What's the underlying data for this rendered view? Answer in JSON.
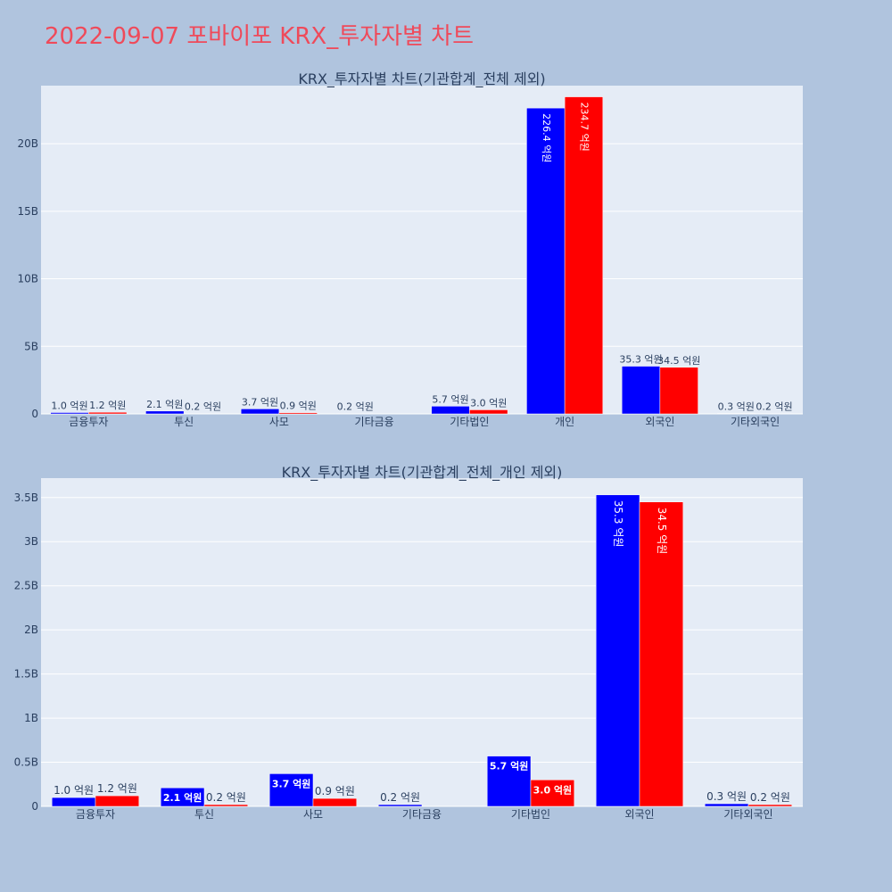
{
  "page_title": "2022-09-07 포바이포 KRX_투자자별 차트",
  "colors": {
    "background": "#b0c4de",
    "plot_bg": "#e5ecf6",
    "grid": "#ffffff",
    "buy": "#0000ff",
    "sell": "#ff0000",
    "title": "#ef4a5a",
    "text": "#2a3f5f"
  },
  "chart_data": [
    {
      "type": "bar",
      "title": "KRX_투자자별 차트(기관합계_전체 제외)",
      "categories": [
        "금융투자",
        "투신",
        "사모",
        "기타금융",
        "기타법인",
        "개인",
        "외국인",
        "기타외국인"
      ],
      "series": [
        {
          "color": "#0000ff",
          "values": [
            0.1,
            0.21,
            0.37,
            0.02,
            0.57,
            22.64,
            3.53,
            0.03
          ],
          "labels": [
            "1.0 억원",
            "2.1 억원",
            "3.7 억원",
            "0.2 억원",
            "5.7 억원",
            "226.4 억원",
            "35.3 억원",
            "0.3 억원"
          ]
        },
        {
          "color": "#ff0000",
          "values": [
            0.12,
            0.02,
            0.09,
            0,
            0.3,
            23.47,
            3.45,
            0.02
          ],
          "labels": [
            "1.2 억원",
            "0.2 억원",
            "0.9 억원",
            "",
            "3.0 억원",
            "234.7 억원",
            "34.5 억원",
            "0.2 억원"
          ]
        }
      ],
      "ylim": [
        0,
        24.3
      ],
      "y_ticks": [
        0,
        5,
        10,
        15,
        20
      ],
      "y_tick_labels": [
        "0",
        "5B",
        "10B",
        "15B",
        "20B"
      ],
      "grid": true
    },
    {
      "type": "bar",
      "title": "KRX_투자자별 차트(기관합계_전체_개인 제외)",
      "categories": [
        "금융투자",
        "투신",
        "사모",
        "기타금융",
        "기타법인",
        "외국인",
        "기타외국인"
      ],
      "series": [
        {
          "color": "#0000ff",
          "values": [
            0.1,
            0.21,
            0.37,
            0.02,
            0.57,
            3.53,
            0.03
          ],
          "labels": [
            "1.0 억원",
            "2.1 억원",
            "3.7 억원",
            "0.2 억원",
            "5.7 억원",
            "35.3 억원",
            "0.3 억원"
          ]
        },
        {
          "color": "#ff0000",
          "values": [
            0.12,
            0.02,
            0.09,
            0,
            0.3,
            3.45,
            0.02
          ],
          "labels": [
            "1.2 억원",
            "0.2 억원",
            "0.9 억원",
            "",
            "3.0 억원",
            "34.5 억원",
            "0.2 억원"
          ]
        }
      ],
      "ylim": [
        0,
        3.72
      ],
      "y_ticks": [
        0,
        0.5,
        1,
        1.5,
        2,
        2.5,
        3,
        3.5
      ],
      "y_tick_labels": [
        "0",
        "0.5B",
        "1B",
        "1.5B",
        "2B",
        "2.5B",
        "3B",
        "3.5B"
      ],
      "grid": true
    }
  ]
}
